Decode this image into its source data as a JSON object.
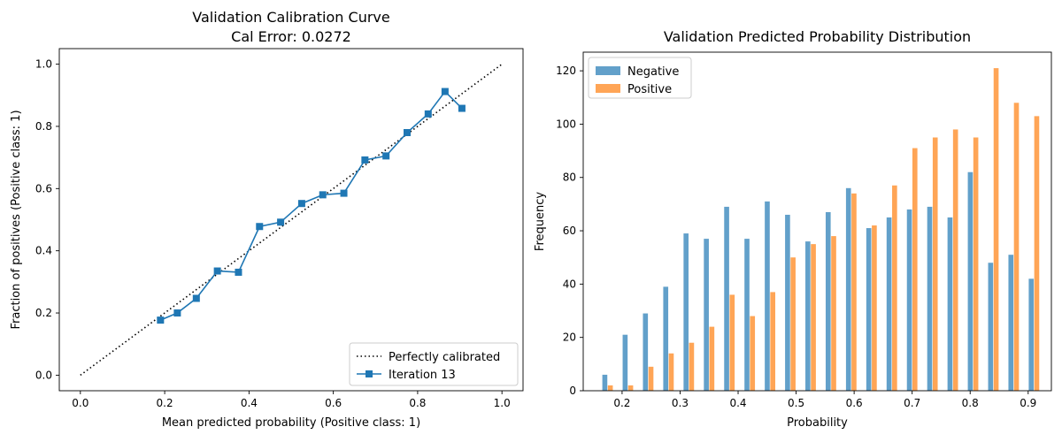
{
  "chart_data": [
    {
      "type": "line",
      "title": "Validation Calibration Curve",
      "subtitle": "Cal Error: 0.0272",
      "xlabel": "Mean predicted probability (Positive class: 1)",
      "ylabel": "Fraction of positives (Positive class: 1)",
      "xlim": [
        -0.05,
        1.05
      ],
      "ylim": [
        -0.05,
        1.05
      ],
      "xticks": [
        0.0,
        0.2,
        0.4,
        0.6,
        0.8,
        1.0
      ],
      "yticks": [
        0.0,
        0.2,
        0.4,
        0.6,
        0.8,
        1.0
      ],
      "legend_position": "bottom-right",
      "grid": false,
      "series": [
        {
          "name": "Perfectly calibrated",
          "style": "dotted",
          "color": "#000000",
          "x": [
            0.0,
            1.0
          ],
          "y": [
            0.0,
            1.0
          ]
        },
        {
          "name": "Iteration 13",
          "style": "solid-square-markers",
          "color": "#1f77b4",
          "x": [
            0.19,
            0.23,
            0.275,
            0.325,
            0.375,
            0.425,
            0.475,
            0.525,
            0.575,
            0.625,
            0.675,
            0.725,
            0.775,
            0.825,
            0.865,
            0.905
          ],
          "y": [
            0.177,
            0.2,
            0.247,
            0.335,
            0.331,
            0.478,
            0.492,
            0.552,
            0.58,
            0.585,
            0.692,
            0.705,
            0.78,
            0.84,
            0.912,
            0.858
          ]
        }
      ]
    },
    {
      "type": "bar",
      "title": "Validation Predicted Probability Distribution",
      "xlabel": "Probability",
      "ylabel": "Frequency",
      "xlim": [
        0.133,
        0.94
      ],
      "ylim": [
        0,
        127
      ],
      "xticks": [
        0.2,
        0.3,
        0.4,
        0.5,
        0.6,
        0.7,
        0.8,
        0.9
      ],
      "yticks": [
        0,
        20,
        40,
        60,
        80,
        100,
        120
      ],
      "legend_position": "top-left",
      "grid": false,
      "bin_centers": [
        0.175,
        0.21,
        0.245,
        0.28,
        0.315,
        0.35,
        0.385,
        0.42,
        0.455,
        0.49,
        0.525,
        0.56,
        0.595,
        0.63,
        0.665,
        0.7,
        0.735,
        0.77,
        0.805,
        0.84,
        0.875,
        0.91
      ],
      "bar_width": 0.0095,
      "series": [
        {
          "name": "Negative",
          "color": "#1f77b4",
          "values": [
            6,
            21,
            29,
            39,
            59,
            57,
            69,
            57,
            71,
            66,
            56,
            67,
            76,
            61,
            65,
            68,
            69,
            65,
            82,
            48,
            51,
            42
          ]
        },
        {
          "name": "Positive",
          "color": "#ff7f0e",
          "values": [
            2,
            2,
            9,
            14,
            18,
            24,
            36,
            28,
            37,
            50,
            55,
            58,
            74,
            62,
            77,
            91,
            95,
            98,
            95,
            121,
            108,
            103
          ]
        }
      ]
    }
  ]
}
